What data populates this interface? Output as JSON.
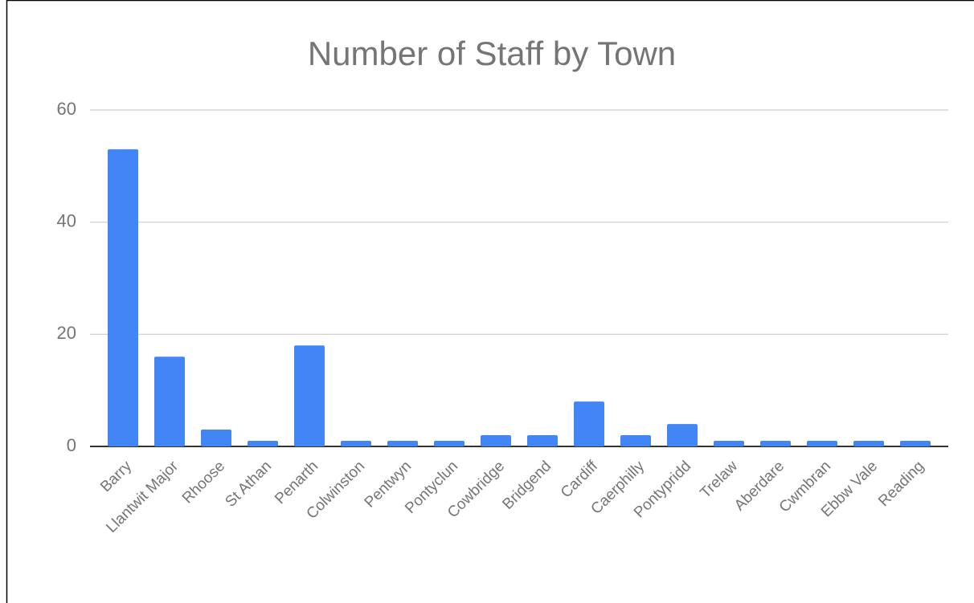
{
  "chart_data": {
    "type": "bar",
    "title": "Number of Staff by Town",
    "categories": [
      "Barry",
      "Llantwit Major",
      "Rhoose",
      "St Athan",
      "Penarth",
      "Colwinston",
      "Pentwyn",
      "Pontyclun",
      "Cowbridge",
      "Bridgend",
      "Cardiff",
      "Caerphilly",
      "Pontypridd",
      "Trelaw",
      "Aberdare",
      "Cwmbran",
      "Ebbw Vale",
      "Reading"
    ],
    "values": [
      53,
      16,
      3,
      1,
      18,
      1,
      1,
      1,
      2,
      2,
      8,
      2,
      4,
      1,
      1,
      1,
      1,
      1
    ],
    "color": "#4285f4",
    "ylim": [
      0,
      60
    ],
    "yticks": [
      0,
      20,
      40,
      60
    ],
    "grid": true
  }
}
